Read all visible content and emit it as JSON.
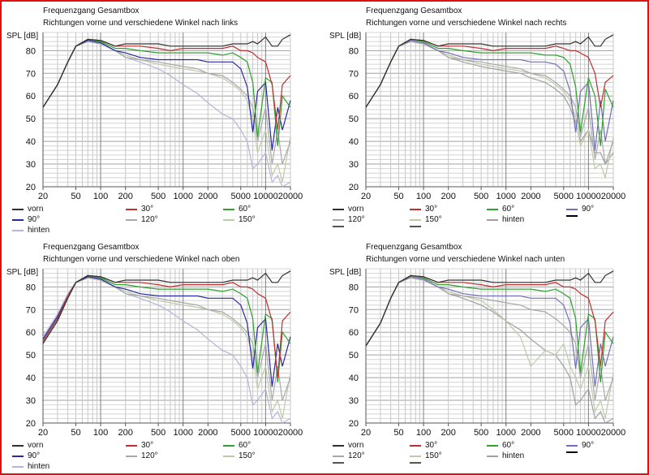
{
  "chart_data": [
    {
      "type": "line",
      "title": "Frequenzgang Gesamtbox",
      "subtitle": "Richtungen vorne und verschiedene Winkel nach links",
      "ylabel": "SPL [dB]",
      "xscale": "log",
      "xlim": [
        20,
        20000
      ],
      "ylim": [
        20,
        88
      ],
      "xticks": [
        20,
        50,
        100,
        200,
        500,
        1000,
        2000,
        5000,
        10000,
        20000
      ],
      "yticks": [
        20,
        30,
        40,
        50,
        60,
        70,
        80
      ],
      "grid": true,
      "legend_placement": "bottom",
      "legend_columns": 3,
      "x": [
        20,
        30,
        40,
        50,
        70,
        100,
        150,
        200,
        300,
        500,
        700,
        1000,
        1500,
        2000,
        3000,
        4000,
        5000,
        6000,
        7000,
        8000,
        10000,
        12000,
        14000,
        16000,
        20000
      ],
      "series": [
        {
          "name": "vorn",
          "color": "#303030",
          "values": [
            55,
            65,
            75,
            82,
            85,
            84.5,
            82,
            83,
            83,
            83,
            82,
            82,
            82,
            82,
            82,
            83,
            83,
            83,
            84,
            83,
            86,
            82,
            82,
            85,
            87
          ]
        },
        {
          "name": "30°",
          "color": "#c03030",
          "values": [
            55,
            65,
            75,
            82,
            85,
            84.5,
            82,
            82,
            82,
            81,
            80,
            81,
            81,
            81,
            81,
            82,
            80,
            80,
            79,
            77,
            75,
            65,
            45,
            65,
            69
          ]
        },
        {
          "name": "60°",
          "color": "#30a030",
          "values": [
            55,
            65,
            75,
            82,
            85,
            84,
            81,
            81,
            80,
            79,
            79,
            79,
            79,
            79,
            78,
            79,
            77,
            75,
            66,
            42,
            68,
            66,
            38,
            60,
            55
          ]
        },
        {
          "name": "90°",
          "color": "#2828a0",
          "values": [
            55,
            65,
            75,
            82,
            84.5,
            83.5,
            80,
            79,
            77,
            76,
            76,
            76,
            76,
            75,
            75,
            75,
            72,
            64,
            44,
            62,
            66,
            36,
            55,
            45,
            58
          ]
        },
        {
          "name": "120°",
          "color": "#a8a8a8",
          "values": [
            55,
            65,
            75,
            82,
            84,
            83,
            80,
            77,
            76,
            75,
            74,
            73,
            72,
            70,
            69,
            66,
            63,
            60,
            55,
            40,
            55,
            30,
            45,
            30,
            40
          ]
        },
        {
          "name": "150°",
          "color": "#bccaa8",
          "values": [
            55,
            65,
            75,
            82,
            84,
            83,
            80,
            78,
            76,
            74,
            73,
            72,
            71,
            70,
            68,
            65,
            62,
            58,
            50,
            35,
            45,
            25,
            30,
            22,
            42
          ]
        },
        {
          "name": "hinten",
          "color": "#b4b4d8",
          "values": [
            55,
            65,
            75,
            82,
            84,
            83,
            80,
            77,
            75,
            72,
            69,
            65,
            61,
            57,
            52,
            50,
            45,
            40,
            28,
            30,
            35,
            22,
            25,
            20,
            22
          ]
        }
      ],
      "legend_extra": []
    },
    {
      "type": "line",
      "title": "Frequenzgang Gesamtbox",
      "subtitle": "Richtungen vorne und verschiedene Winkel nach rechts",
      "ylabel": "SPL [dB]",
      "xscale": "log",
      "xlim": [
        20,
        20000
      ],
      "ylim": [
        20,
        88
      ],
      "xticks": [
        20,
        50,
        100,
        200,
        500,
        1000,
        2000,
        5000,
        10000,
        20000
      ],
      "yticks": [
        20,
        30,
        40,
        50,
        60,
        70,
        80
      ],
      "grid": true,
      "legend_placement": "bottom",
      "legend_columns": 4,
      "x": [
        20,
        30,
        40,
        50,
        70,
        100,
        150,
        200,
        300,
        500,
        700,
        1000,
        1500,
        2000,
        3000,
        4000,
        5000,
        6000,
        7000,
        8000,
        10000,
        12000,
        14000,
        16000,
        20000
      ],
      "series": [
        {
          "name": "vorn",
          "color": "#303030",
          "values": [
            55,
            65,
            75,
            82,
            85,
            84.5,
            82,
            83,
            83,
            83,
            82,
            82,
            82,
            82,
            82,
            83,
            83,
            83,
            84,
            83,
            86,
            82,
            82,
            85,
            87
          ]
        },
        {
          "name": "30°",
          "color": "#c03030",
          "values": [
            55,
            65,
            75,
            82,
            85,
            84.5,
            82,
            82,
            82,
            81,
            80,
            81,
            81,
            81,
            81,
            82,
            81,
            80,
            80,
            79,
            77,
            70,
            55,
            66,
            69
          ]
        },
        {
          "name": "60°",
          "color": "#30a030",
          "values": [
            55,
            65,
            75,
            82,
            85,
            84,
            81,
            81,
            80,
            79,
            79,
            79,
            79,
            79,
            78,
            78,
            77,
            74,
            64,
            44,
            68,
            60,
            38,
            63,
            55
          ]
        },
        {
          "name": "90°",
          "color": "#7070b8",
          "values": [
            55,
            65,
            75,
            82,
            84.5,
            83.5,
            80,
            79,
            77,
            76,
            76,
            76,
            76,
            75,
            75,
            74,
            71,
            62,
            44,
            62,
            66,
            36,
            58,
            40,
            58
          ]
        },
        {
          "name": "120°",
          "color": "#a8a8a8",
          "values": [
            55,
            65,
            75,
            82,
            84,
            83,
            80,
            77,
            76,
            75,
            74,
            73,
            72,
            70,
            69,
            66,
            63,
            60,
            55,
            42,
            55,
            32,
            45,
            30,
            40
          ]
        },
        {
          "name": "150°",
          "color": "#bccaa8",
          "values": [
            55,
            65,
            75,
            82,
            84,
            83,
            80,
            78,
            76,
            74,
            73,
            72,
            71,
            70,
            68,
            65,
            62,
            58,
            50,
            38,
            45,
            28,
            30,
            24,
            42
          ]
        },
        {
          "name": "hinten",
          "color": "#a0a0a0",
          "values": [
            55,
            65,
            75,
            82,
            84,
            83,
            80,
            77,
            75,
            73,
            72,
            71,
            70,
            68,
            66,
            63,
            60,
            55,
            48,
            40,
            45,
            35,
            35,
            30,
            35
          ]
        }
      ],
      "legend_extra": [
        {
          "name": "",
          "color": "#000000"
        },
        {
          "name": "",
          "color": "#555555"
        },
        {
          "name": "",
          "color": "#555555"
        }
      ]
    },
    {
      "type": "line",
      "title": "Frequenzgang Gesamtbox",
      "subtitle": "Richtungen vorne und verschiedene Winkel nach oben",
      "ylabel": "SPL [dB]",
      "xscale": "log",
      "xlim": [
        20,
        20000
      ],
      "ylim": [
        20,
        88
      ],
      "xticks": [
        20,
        50,
        100,
        200,
        500,
        1000,
        2000,
        5000,
        10000,
        20000
      ],
      "yticks": [
        20,
        30,
        40,
        50,
        60,
        70,
        80
      ],
      "grid": true,
      "legend_placement": "bottom",
      "legend_columns": 3,
      "x": [
        20,
        30,
        40,
        50,
        70,
        100,
        150,
        200,
        300,
        500,
        700,
        1000,
        1500,
        2000,
        3000,
        4000,
        5000,
        6000,
        7000,
        8000,
        10000,
        12000,
        14000,
        16000,
        20000
      ],
      "series": [
        {
          "name": "vorn",
          "color": "#303030",
          "values": [
            55,
            65,
            75,
            82,
            85,
            84.5,
            82,
            83,
            83,
            83,
            82,
            82,
            82,
            82,
            82,
            83,
            83,
            83,
            84,
            83,
            86,
            82,
            82,
            85,
            87
          ]
        },
        {
          "name": "30°",
          "color": "#c03030",
          "values": [
            56,
            66,
            76,
            82,
            85,
            84.5,
            82,
            82,
            82,
            81,
            80,
            81,
            81,
            81,
            81,
            82,
            80,
            80,
            79,
            77,
            75,
            65,
            40,
            65,
            69
          ]
        },
        {
          "name": "60°",
          "color": "#30a030",
          "values": [
            56,
            66,
            76,
            82,
            85,
            84,
            81,
            81,
            80,
            79,
            79,
            79,
            79,
            79,
            78,
            79,
            77,
            75,
            66,
            42,
            68,
            66,
            38,
            60,
            55
          ]
        },
        {
          "name": "90°",
          "color": "#2828a0",
          "values": [
            57,
            67,
            76,
            82,
            84.5,
            83.5,
            80,
            79,
            77,
            76,
            76,
            76,
            76,
            75,
            75,
            75,
            72,
            64,
            44,
            62,
            66,
            36,
            55,
            45,
            58
          ]
        },
        {
          "name": "120°",
          "color": "#a8a8a8",
          "values": [
            57,
            67,
            76,
            82,
            84,
            83,
            80,
            77,
            76,
            75,
            74,
            73,
            72,
            70,
            69,
            66,
            63,
            60,
            55,
            40,
            55,
            30,
            45,
            30,
            40
          ]
        },
        {
          "name": "150°",
          "color": "#bccaa8",
          "values": [
            57,
            67,
            76,
            82,
            84,
            83,
            80,
            78,
            76,
            74,
            73,
            72,
            71,
            70,
            68,
            65,
            62,
            58,
            50,
            35,
            45,
            25,
            30,
            22,
            42
          ]
        },
        {
          "name": "hinten",
          "color": "#b4b4d8",
          "values": [
            58,
            68,
            77,
            82,
            84,
            83,
            80,
            77,
            75,
            72,
            69,
            65,
            61,
            57,
            52,
            50,
            45,
            40,
            28,
            30,
            35,
            22,
            25,
            20,
            22
          ]
        }
      ],
      "legend_extra": []
    },
    {
      "type": "line",
      "title": "Frequenzgang Gesamtbox",
      "subtitle": "Richtungen vorne und verschiedene Winkel nach unten",
      "ylabel": "SPL [dB]",
      "xscale": "log",
      "xlim": [
        20,
        20000
      ],
      "ylim": [
        20,
        88
      ],
      "xticks": [
        20,
        50,
        100,
        200,
        500,
        1000,
        2000,
        5000,
        10000,
        20000
      ],
      "yticks": [
        20,
        30,
        40,
        50,
        60,
        70,
        80
      ],
      "grid": true,
      "legend_placement": "bottom",
      "legend_columns": 4,
      "x": [
        20,
        30,
        40,
        50,
        70,
        100,
        150,
        200,
        300,
        500,
        700,
        1000,
        1500,
        2000,
        3000,
        4000,
        5000,
        6000,
        7000,
        8000,
        10000,
        12000,
        14000,
        16000,
        20000
      ],
      "series": [
        {
          "name": "vorn",
          "color": "#303030",
          "values": [
            54,
            64,
            75,
            82,
            85,
            84.5,
            82,
            83,
            83,
            83,
            82,
            82,
            82,
            82,
            82,
            83,
            83,
            83,
            84,
            83,
            86,
            82,
            82,
            85,
            87
          ]
        },
        {
          "name": "30°",
          "color": "#c03030",
          "values": [
            54,
            64,
            75,
            82,
            85,
            84.5,
            82,
            82,
            82,
            81,
            80,
            81,
            81,
            81,
            81,
            82,
            80,
            80,
            79,
            77,
            75,
            65,
            45,
            65,
            69
          ]
        },
        {
          "name": "60°",
          "color": "#30a030",
          "values": [
            54,
            64,
            75,
            82,
            85,
            84,
            81,
            81,
            80,
            79,
            79,
            79,
            79,
            79,
            78,
            79,
            77,
            75,
            66,
            42,
            68,
            66,
            38,
            60,
            55
          ]
        },
        {
          "name": "90°",
          "color": "#7070b8",
          "values": [
            54,
            64,
            75,
            82,
            84.5,
            83.5,
            80,
            79,
            77,
            76,
            76,
            76,
            76,
            75,
            75,
            75,
            72,
            64,
            44,
            62,
            66,
            36,
            55,
            45,
            58
          ]
        },
        {
          "name": "120°",
          "color": "#a8a8a8",
          "values": [
            54,
            64,
            75,
            82,
            84,
            83,
            80,
            77,
            76,
            75,
            74,
            73,
            72,
            70,
            69,
            66,
            63,
            60,
            55,
            40,
            55,
            30,
            45,
            30,
            40
          ]
        },
        {
          "name": "150°",
          "color": "#bccaa8",
          "values": [
            54,
            64,
            75,
            82,
            84,
            83,
            80,
            78,
            76,
            74,
            70,
            65,
            58,
            45,
            52,
            50,
            55,
            45,
            40,
            35,
            45,
            25,
            30,
            22,
            42
          ]
        },
        {
          "name": "hinten",
          "color": "#a0a0a0",
          "values": [
            54,
            64,
            75,
            82,
            84,
            83,
            80,
            77,
            75,
            72,
            69,
            65,
            61,
            57,
            52,
            50,
            45,
            40,
            28,
            30,
            35,
            22,
            25,
            20,
            22
          ]
        }
      ],
      "legend_extra": [
        {
          "name": "",
          "color": "#000000"
        },
        {
          "name": "",
          "color": "#555555"
        },
        {
          "name": "",
          "color": "#555555"
        }
      ]
    }
  ]
}
